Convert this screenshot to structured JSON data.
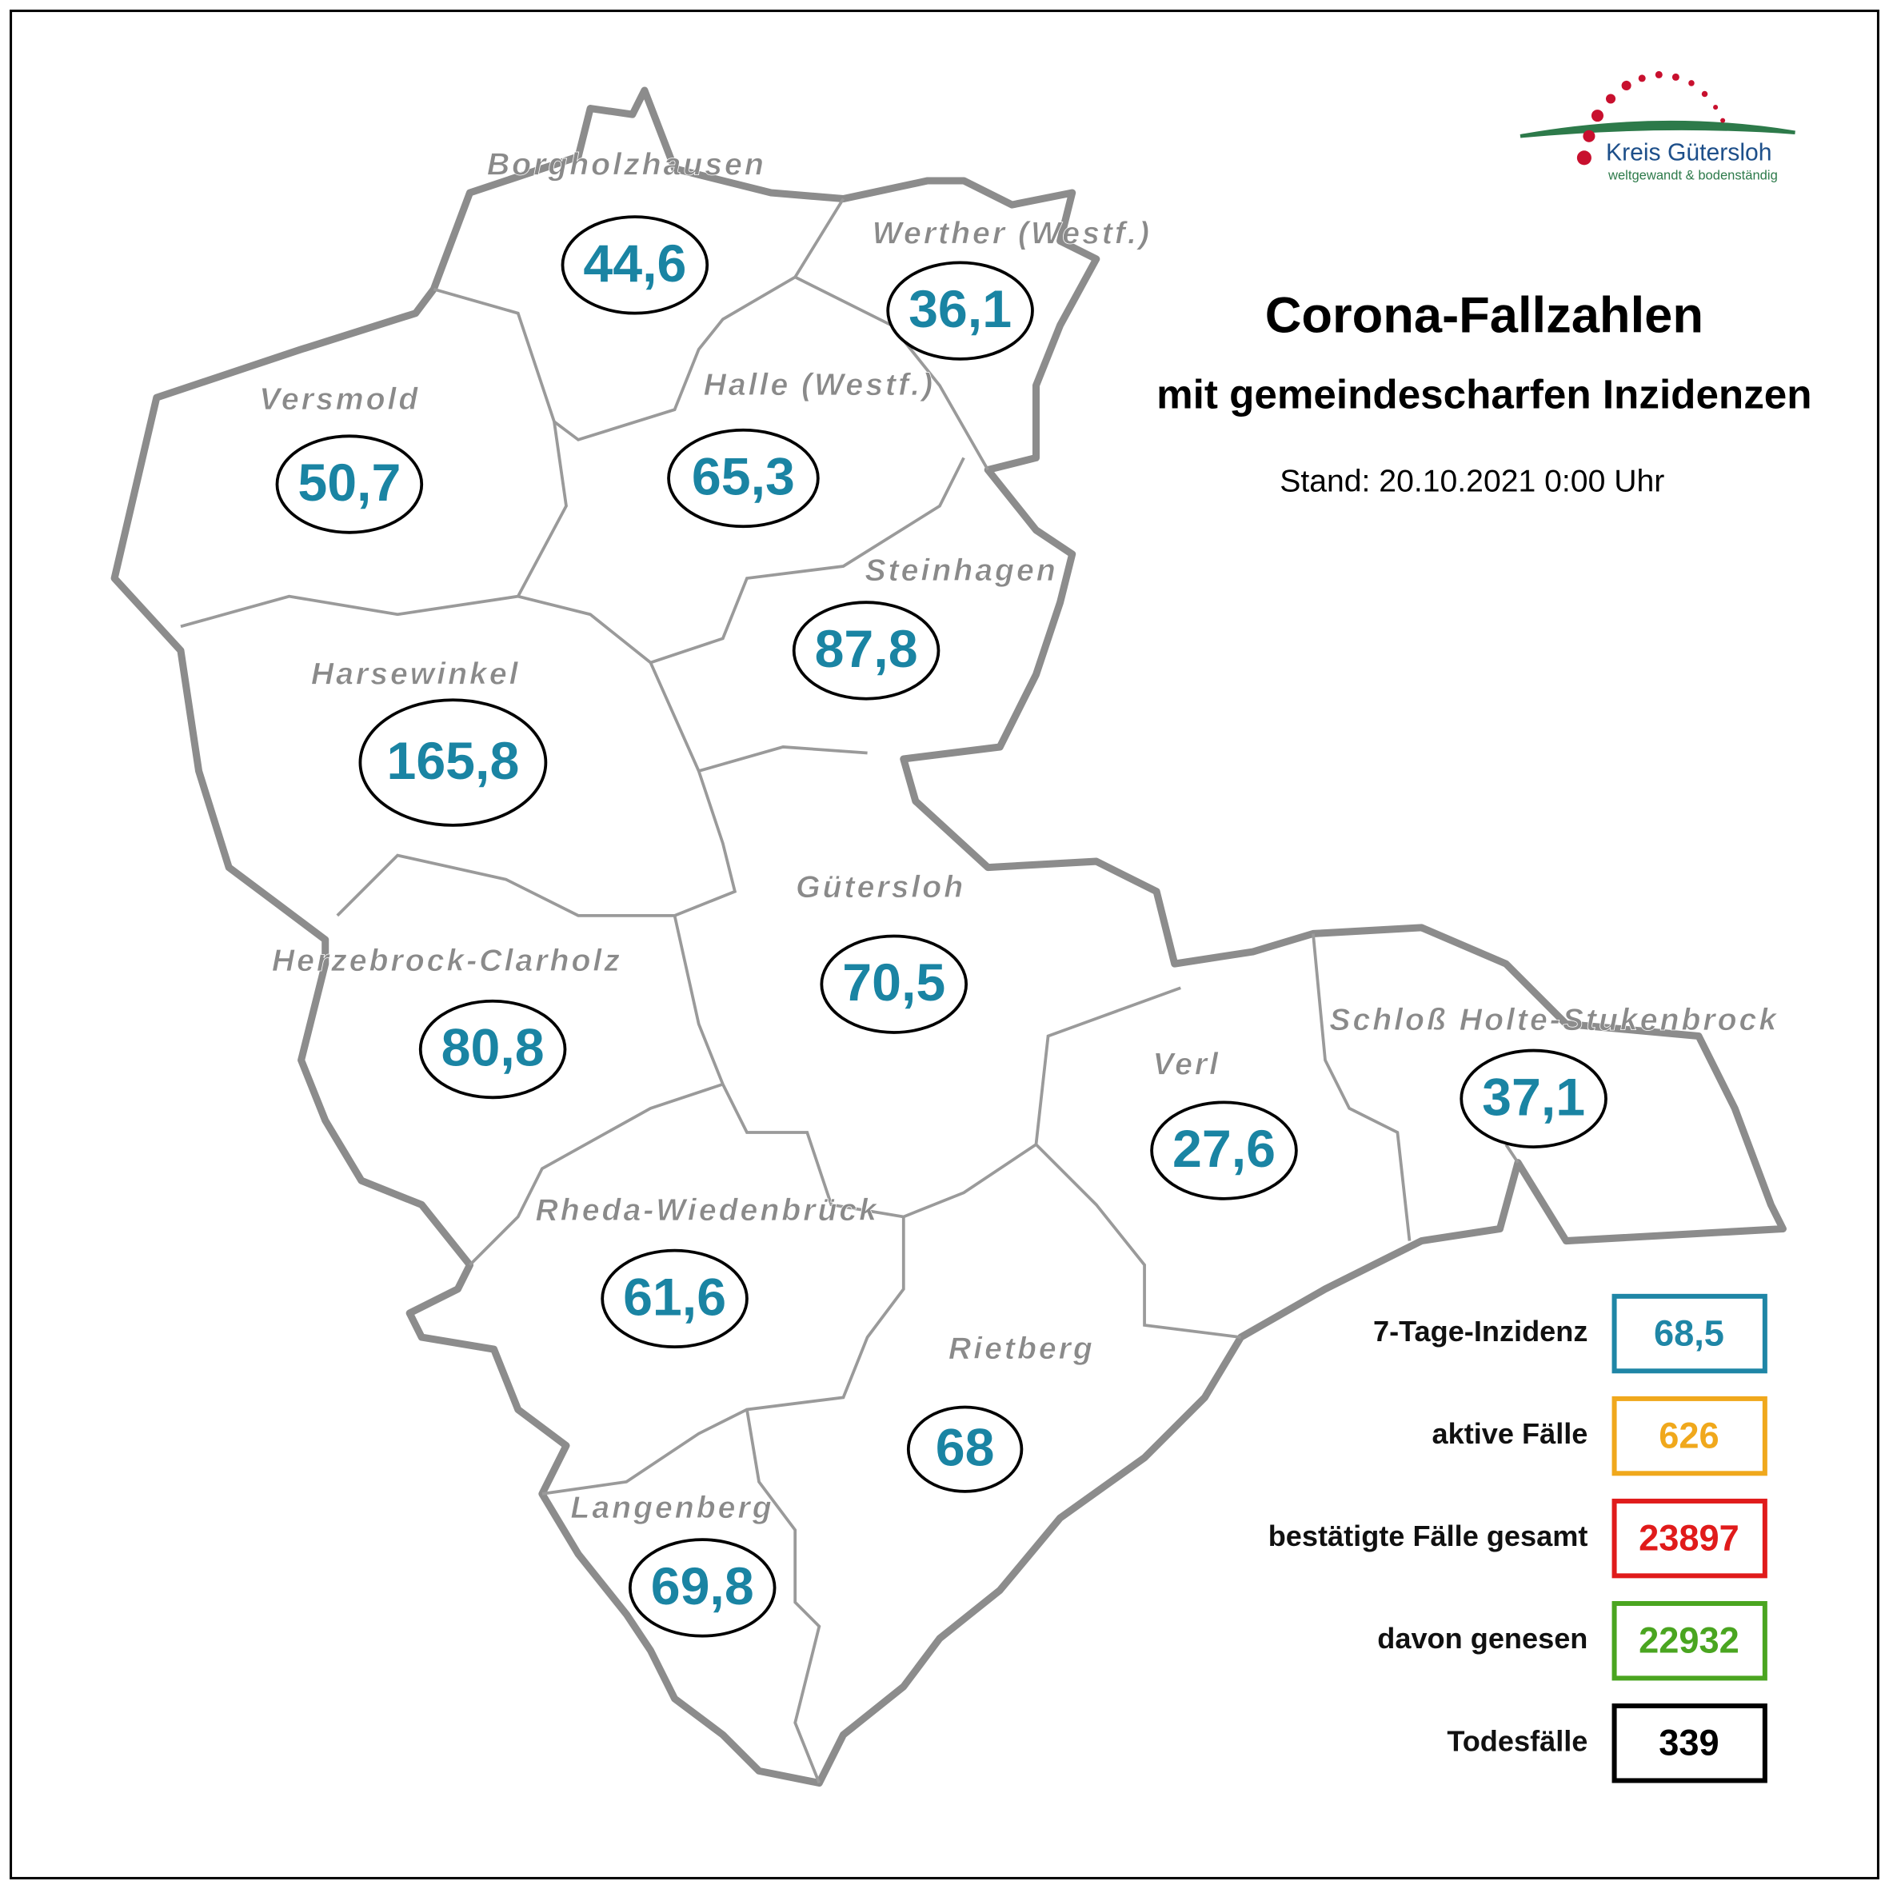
{
  "header": {
    "title": "Corona-Fallzahlen",
    "subtitle": "mit gemeindescharfen Inzidenzen",
    "stand": "Stand: 20.10.2021 0:00 Uhr"
  },
  "logo": {
    "name": "Kreis Gütersloh",
    "slogan": "weltgewandt & bodenständig"
  },
  "municipalities": [
    {
      "name": "Borgholzhausen",
      "value": "44,6"
    },
    {
      "name": "Werther (Westf.)",
      "value": "36,1"
    },
    {
      "name": "Versmold",
      "value": "50,7"
    },
    {
      "name": "Halle (Westf.)",
      "value": "65,3"
    },
    {
      "name": "Steinhagen",
      "value": "87,8"
    },
    {
      "name": "Harsewinkel",
      "value": "165,8"
    },
    {
      "name": "Gütersloh",
      "value": "70,5"
    },
    {
      "name": "Herzebrock-Clarholz",
      "value": "80,8"
    },
    {
      "name": "Verl",
      "value": "27,6"
    },
    {
      "name": "Schloß Holte-Stukenbrock",
      "value": "37,1"
    },
    {
      "name": "Rheda-Wiedenbrück",
      "value": "61,6"
    },
    {
      "name": "Rietberg",
      "value": "68"
    },
    {
      "name": "Langenberg",
      "value": "69,8"
    }
  ],
  "summary": [
    {
      "label": "7-Tage-Inzidenz",
      "value": "68,5",
      "color": "#1f86a6"
    },
    {
      "label": "aktive Fälle",
      "value": "626",
      "color": "#f0a81c"
    },
    {
      "label": "bestätigte Fälle gesamt",
      "value": "23897",
      "color": "#e01b1b"
    },
    {
      "label": "davon genesen",
      "value": "22932",
      "color": "#4aa520"
    },
    {
      "label": "Todesfälle",
      "value": "339",
      "color": "#000000"
    }
  ]
}
